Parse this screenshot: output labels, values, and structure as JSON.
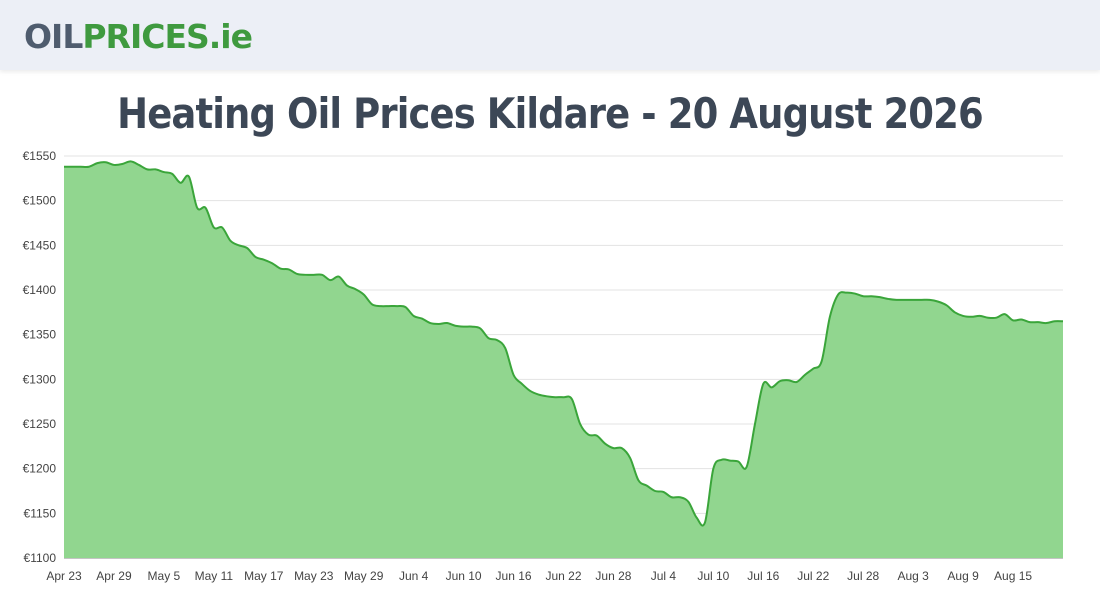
{
  "header": {
    "logo_part1": "OIL",
    "logo_part2": "PRICES",
    "logo_part3": ".ie"
  },
  "chart_data": {
    "type": "area",
    "title": "Heating Oil Prices Kildare - 20 August 2026",
    "xlabel": "",
    "ylabel": "",
    "ylim": [
      1100,
      1550
    ],
    "yticks": [
      "€1550",
      "€1500",
      "€1450",
      "€1400",
      "€1350",
      "€1300",
      "€1250",
      "€1200",
      "€1150",
      "€1100"
    ],
    "ytick_values": [
      1550,
      1500,
      1450,
      1400,
      1350,
      1300,
      1250,
      1200,
      1150,
      1100
    ],
    "xticks": [
      "Apr 23",
      "Apr 29",
      "May 5",
      "May 11",
      "May 17",
      "May 23",
      "May 29",
      "Jun 4",
      "Jun 10",
      "Jun 16",
      "Jun 22",
      "Jun 28",
      "Jul 4",
      "Jul 10",
      "Jul 16",
      "Jul 22",
      "Jul 28",
      "Aug 3",
      "Aug 9",
      "Aug 15"
    ],
    "grid": true,
    "legend": "none",
    "line_color": "#3aa53a",
    "fill_color": "#91d68f",
    "series": [
      {
        "values": [
          1538,
          1538,
          1538,
          1538,
          1542,
          1543,
          1540,
          1541,
          1544,
          1540,
          1535,
          1535,
          1532,
          1530,
          1520,
          1527,
          1492,
          1492,
          1470,
          1470,
          1455,
          1450,
          1447,
          1437,
          1434,
          1430,
          1424,
          1423,
          1418,
          1417,
          1417,
          1417,
          1411,
          1415,
          1405,
          1401,
          1395,
          1384,
          1382,
          1382,
          1382,
          1381,
          1371,
          1368,
          1363,
          1362,
          1363,
          1360,
          1359,
          1359,
          1357,
          1346,
          1344,
          1335,
          1305,
          1295,
          1287,
          1283,
          1281,
          1280,
          1280,
          1278,
          1250,
          1238,
          1237,
          1228,
          1223,
          1223,
          1212,
          1187,
          1181,
          1175,
          1174,
          1168,
          1168,
          1163,
          1145,
          1140,
          1200,
          1210,
          1209,
          1208,
          1202,
          1250,
          1295,
          1291,
          1298,
          1299,
          1297,
          1305,
          1312,
          1320,
          1370,
          1395,
          1397,
          1396,
          1393,
          1393,
          1392,
          1390,
          1389,
          1389,
          1389,
          1389,
          1389,
          1387,
          1383,
          1375,
          1371,
          1370,
          1371,
          1369,
          1369,
          1373,
          1366,
          1367,
          1364,
          1364,
          1363,
          1365,
          1365
        ]
      }
    ]
  }
}
